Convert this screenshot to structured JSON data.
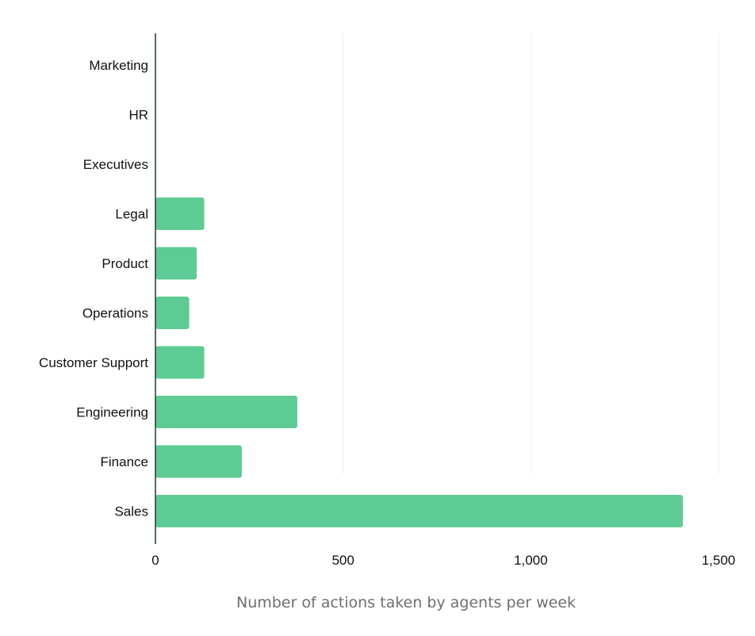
{
  "chart_data": {
    "type": "bar",
    "orientation": "horizontal",
    "categories": [
      "Marketing",
      "HR",
      "Executives",
      "Legal",
      "Product",
      "Operations",
      "Customer Support",
      "Engineering",
      "Finance",
      "Sales"
    ],
    "values": [
      0,
      0,
      0,
      130,
      110,
      90,
      130,
      378,
      230,
      1405
    ],
    "xlabel": "Number of actions taken by agents per week",
    "ylabel": "",
    "xlim": [
      0,
      1500
    ],
    "xticks": [
      0,
      500,
      1000,
      1500
    ],
    "xtick_labels": [
      "0",
      "500",
      "1,000",
      "1,500"
    ],
    "grid": "vertical",
    "legend": "none",
    "bar_color": "#5fcb94",
    "grid_color": "#e6f2ec",
    "axis_color": "#1f3b33"
  }
}
